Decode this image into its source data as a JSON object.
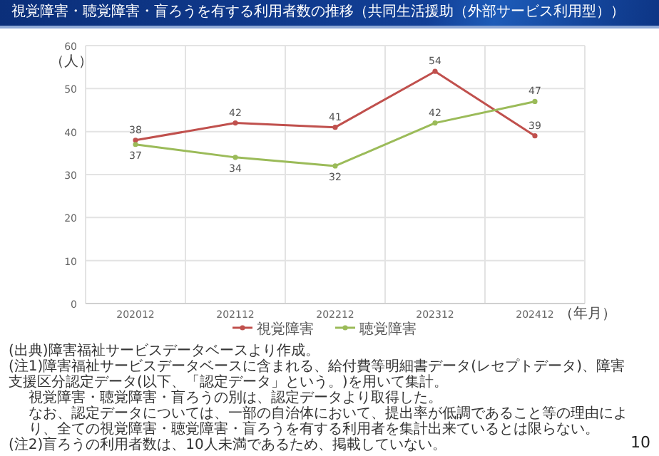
{
  "chart_data": {
    "type": "line",
    "title": "視覚障害・聴覚障害・盲ろうを有する利用者数の推移（共同生活援助（外部サービス利用型））",
    "ylabel": "（人）",
    "xlabel": "（年月）",
    "categories": [
      "202012",
      "202112",
      "202212",
      "202312",
      "202412"
    ],
    "series": [
      {
        "name": "視覚障害",
        "color": "#c0504d",
        "values": [
          38,
          42,
          41,
          54,
          39
        ]
      },
      {
        "name": "聴覚障害",
        "color": "#9bbb59",
        "values": [
          37,
          34,
          32,
          42,
          47
        ]
      }
    ],
    "ylim": [
      0,
      60
    ],
    "yticks": [
      0,
      10,
      20,
      30,
      40,
      50,
      60
    ],
    "grid": true,
    "legend": "bottom",
    "marker": "circle",
    "data_labels": true,
    "annotations": [
      "(出典)障害福祉サービスデータベースより作成。",
      "(注1)障害福祉サービスデータベースに含まれる、給付費等明細書データ(レセプトデータ)、障害支援区分認定データ(以下、「認定データ」という。)を用いて集計。",
      "視覚障害・聴覚障害・盲ろうの別は、認定データより取得した。",
      "なお、認定データについては、一部の自治体において、提出率が低調であること等の理由により、全ての視覚障害・聴覚障害・盲ろうを有する利用者を集計出来ているとは限らない。",
      "(注2)盲ろうの利用者数は、10人未満であるため、掲載していない。",
      "10"
    ]
  }
}
